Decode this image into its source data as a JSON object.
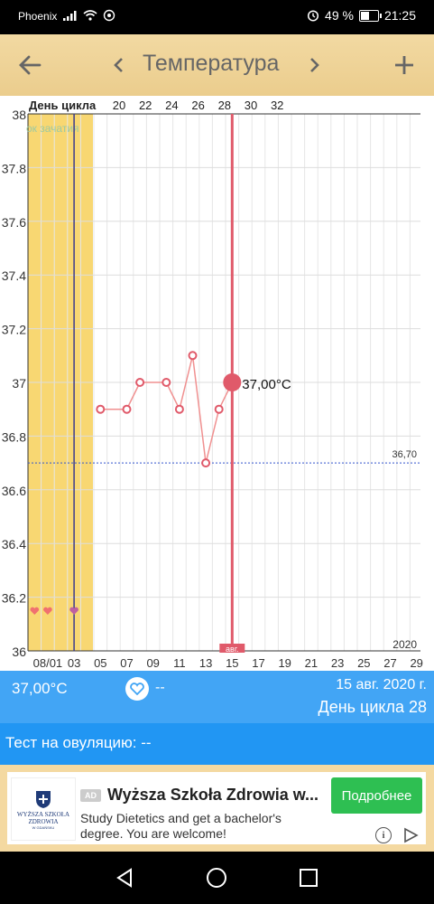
{
  "status_bar": {
    "carrier": "Phoenix",
    "battery_percent": "49 %",
    "time": "21:25",
    "icons": [
      "signal-icon",
      "wifi-icon",
      "hotspot-icon",
      "alarm-icon",
      "battery-icon"
    ]
  },
  "toolbar": {
    "back_icon": "arrow-left-icon",
    "prev_icon": "chevron-left-icon",
    "title": "Температура",
    "next_icon": "chevron-right-icon",
    "add_icon": "plus-icon"
  },
  "colors": {
    "toolbar_bg": "#ebcd8d",
    "fertile_zone": "#f8d772",
    "current_day_line": "#e05a6a",
    "temperature_line": "#f09090",
    "coverline": "#3355cc",
    "info_bar": "#42a5f5",
    "test_bar": "#2196f3",
    "ad_cta": "#2ebf52"
  },
  "chart_data": {
    "type": "line",
    "cycle_label": "День цикла",
    "cycle_ticks": [
      "20",
      "22",
      "24",
      "26",
      "28",
      "30",
      "32"
    ],
    "fertile_label": "ок зачатия",
    "y_ticks": [
      "36",
      "36.2",
      "36.4",
      "36.6",
      "36.8",
      "37",
      "37.2",
      "37.4",
      "37.6",
      "37.8",
      "38"
    ],
    "ylim": [
      36,
      38
    ],
    "x_dates": [
      "08/01",
      "03",
      "05",
      "07",
      "09",
      "11",
      "13",
      "15",
      "17",
      "19",
      "21",
      "23",
      "25",
      "27",
      "29"
    ],
    "x_dates_months": [
      "авг",
      "авг",
      "авг",
      "авг",
      "авг",
      "авг",
      "авг",
      "авг",
      "авг",
      "авг",
      "авг",
      "авг",
      "авг",
      "авг",
      "авг"
    ],
    "year": "2020",
    "coverline": {
      "value": 36.7,
      "label": "36,70"
    },
    "current_point": {
      "date": "2020-08-15",
      "value": 37.0,
      "label": "37,00°C"
    },
    "month_marker": "авг.",
    "series": [
      {
        "dates": [
          "2020-08-05",
          "2020-08-07",
          "2020-08-08",
          "2020-08-10",
          "2020-08-11",
          "2020-08-12",
          "2020-08-13",
          "2020-08-14",
          "2020-08-15"
        ],
        "values": [
          36.9,
          36.9,
          37.0,
          37.0,
          36.9,
          37.1,
          36.7,
          36.9,
          37.0
        ]
      }
    ],
    "heart_markers_dates": [
      "2020-07-31",
      "2020-08-01",
      "2020-08-03"
    ]
  },
  "info_bar": {
    "temperature": "37,00°C",
    "intercourse": "--",
    "date": "15 авг. 2020 г.",
    "cycle_day": "День цикла 28"
  },
  "test_bar": {
    "text": "Тест на овуляцию: --"
  },
  "ad": {
    "logo_line1": "WYŻSZA SZKOŁA",
    "logo_line2": "ZDROWIA",
    "logo_line3": "W GDAŃSKU",
    "badge": "AD",
    "title": "Wyższa Szkoła Zdrowia w...",
    "text": "Study Dietetics and get a bachelor's degree. You are welcome!",
    "cta": "Подробнее"
  },
  "nav_bar": {
    "icons": [
      "back-triangle-icon",
      "home-circle-icon",
      "recents-square-icon"
    ]
  }
}
